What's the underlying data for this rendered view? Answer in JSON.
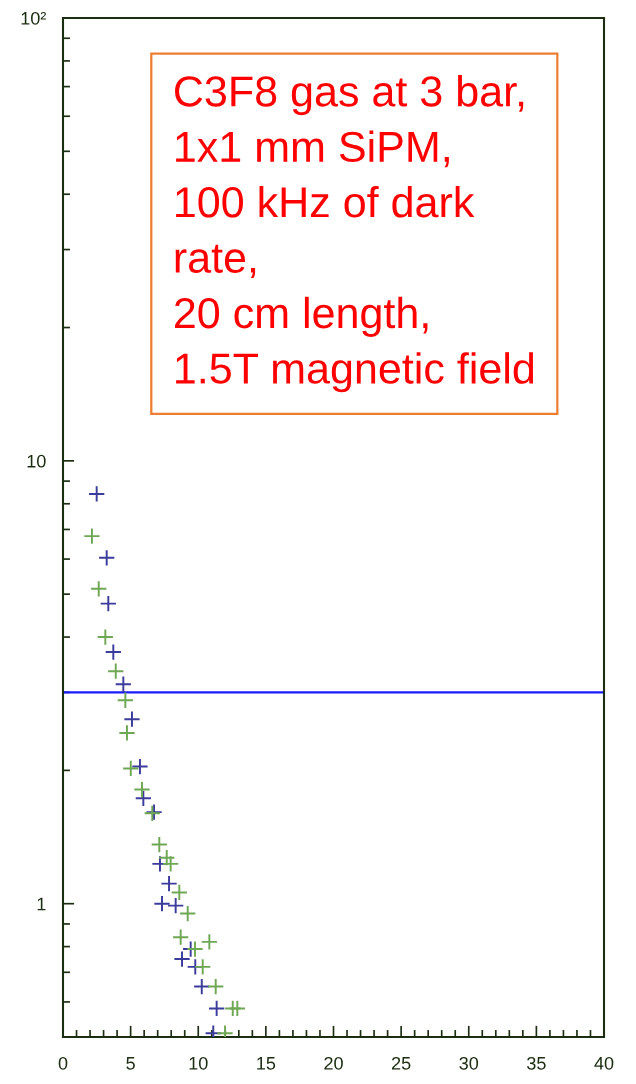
{
  "chart_data": {
    "type": "scatter",
    "log": "y",
    "marker": "cross",
    "grid": false,
    "xlim": [
      0,
      40
    ],
    "ylim": [
      0.5,
      100
    ],
    "xticks": [
      0,
      {
        "value": 1,
        "label": null
      },
      {
        "value": 2,
        "label": null
      },
      {
        "value": 3,
        "label": null
      },
      {
        "value": 4,
        "label": null
      },
      5,
      {
        "value": 6,
        "label": null
      },
      {
        "value": 7,
        "label": null
      },
      {
        "value": 8,
        "label": null
      },
      {
        "value": 9,
        "label": null
      },
      10,
      {
        "value": 11,
        "label": null
      },
      {
        "value": 12,
        "label": null
      },
      {
        "value": 13,
        "label": null
      },
      {
        "value": 14,
        "label": null
      },
      15,
      {
        "value": 16,
        "label": null
      },
      {
        "value": 17,
        "label": null
      },
      {
        "value": 18,
        "label": null
      },
      {
        "value": 19,
        "label": null
      },
      20,
      {
        "value": 21,
        "label": null
      },
      {
        "value": 22,
        "label": null
      },
      {
        "value": 23,
        "label": null
      },
      {
        "value": 24,
        "label": null
      },
      25,
      {
        "value": 26,
        "label": null
      },
      {
        "value": 27,
        "label": null
      },
      {
        "value": 28,
        "label": null
      },
      {
        "value": 29,
        "label": null
      },
      30,
      {
        "value": 31,
        "label": null
      },
      {
        "value": 32,
        "label": null
      },
      {
        "value": 33,
        "label": null
      },
      {
        "value": 34,
        "label": null
      },
      35,
      {
        "value": 36,
        "label": null
      },
      {
        "value": 37,
        "label": null
      },
      {
        "value": 38,
        "label": null
      },
      {
        "value": 39,
        "label": null
      },
      40
    ],
    "yticks": [
      {
        "value": 0.6,
        "label": null
      },
      {
        "value": 0.7,
        "label": null
      },
      {
        "value": 0.8,
        "label": null
      },
      {
        "value": 0.9,
        "label": null
      },
      1,
      {
        "value": 2,
        "label": null
      },
      {
        "value": 3,
        "label": null
      },
      {
        "value": 4,
        "label": null
      },
      {
        "value": 5,
        "label": null
      },
      {
        "value": 6,
        "label": null
      },
      {
        "value": 7,
        "label": null
      },
      {
        "value": 8,
        "label": null
      },
      {
        "value": 9,
        "label": null
      },
      10,
      {
        "value": 20,
        "label": null
      },
      {
        "value": 30,
        "label": null
      },
      {
        "value": 40,
        "label": null
      },
      {
        "value": 50,
        "label": null
      },
      {
        "value": 60,
        "label": null
      },
      {
        "value": 70,
        "label": null
      },
      {
        "value": 80,
        "label": null
      },
      {
        "value": 90,
        "label": null
      },
      {
        "value": 100,
        "label": "10²"
      }
    ],
    "series": [
      {
        "color": "#3c3c9c",
        "x": [
          2.49,
          3.23,
          3.35,
          3.72,
          4.46,
          5.1,
          5.69,
          5.94,
          6.73,
          7.17,
          7.84,
          7.32,
          8.33,
          9.44,
          8.8,
          9.78,
          10.26,
          11.36,
          11.11
        ],
        "values": [
          8.42,
          6.04,
          4.76,
          3.7,
          3.13,
          2.61,
          2.04,
          1.73,
          1.61,
          1.23,
          1.11,
          1.0,
          0.99,
          0.79,
          0.75,
          0.72,
          0.65,
          0.58,
          0.51
        ]
      },
      {
        "color": "#6fa854",
        "x": [
          2.14,
          2.64,
          3.13,
          3.9,
          4.61,
          4.73,
          5.01,
          5.84,
          6.6,
          7.12,
          7.67,
          7.96,
          8.6,
          9.22,
          8.7,
          9.76,
          10.82,
          10.33,
          11.29,
          12.55,
          12.89,
          11.98
        ],
        "values": [
          6.76,
          5.14,
          4.0,
          3.35,
          2.88,
          2.43,
          2.02,
          1.81,
          1.6,
          1.36,
          1.27,
          1.23,
          1.06,
          0.95,
          0.84,
          0.79,
          0.82,
          0.72,
          0.65,
          0.58,
          0.58,
          0.51
        ]
      }
    ],
    "ref_lines": [
      {
        "axis": "y",
        "value": 3,
        "color": "#1a1aff",
        "line_style": "solid"
      }
    ],
    "annotations": [
      "C3F8 gas at 3 bar,\n1x1 mm SiPM,\n100 kHz of dark\nrate,\n20 cm length,\n1.5T magnetic field"
    ]
  }
}
